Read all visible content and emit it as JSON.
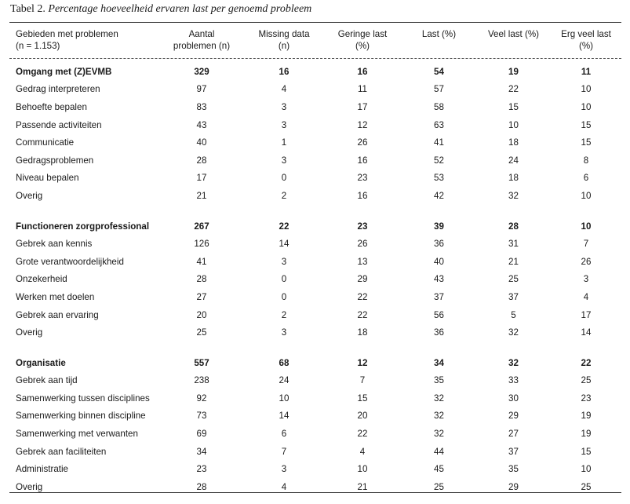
{
  "caption": {
    "label": "Tabel 2.",
    "title": "Percentage hoeveelheid ervaren last per genoemd probleem"
  },
  "headers": [
    {
      "line1": "Gebieden met problemen",
      "line2": "(n = 1.153)"
    },
    {
      "line1": "Aantal",
      "line2": "problemen (n)"
    },
    {
      "line1": "Missing data",
      "line2": "(n)"
    },
    {
      "line1": "Geringe last",
      "line2": "(%)"
    },
    {
      "line1": "Last (%)",
      "line2": ""
    },
    {
      "line1": "Veel last (%)",
      "line2": ""
    },
    {
      "line1": "Erg veel last",
      "line2": "(%)"
    }
  ],
  "groups": [
    {
      "name": "Omgang met (Z)EVMB",
      "values": [
        "329",
        "16",
        "16",
        "54",
        "19",
        "11"
      ],
      "rows": [
        {
          "label": "Gedrag interpreteren",
          "values": [
            "97",
            "4",
            "11",
            "57",
            "22",
            "10"
          ]
        },
        {
          "label": "Behoefte bepalen",
          "values": [
            "83",
            "3",
            "17",
            "58",
            "15",
            "10"
          ]
        },
        {
          "label": "Passende activiteiten",
          "values": [
            "43",
            "3",
            "12",
            "63",
            "10",
            "15"
          ]
        },
        {
          "label": "Communicatie",
          "values": [
            "40",
            "1",
            "26",
            "41",
            "18",
            "15"
          ]
        },
        {
          "label": "Gedragsproblemen",
          "values": [
            "28",
            "3",
            "16",
            "52",
            "24",
            "8"
          ]
        },
        {
          "label": "Niveau bepalen",
          "values": [
            "17",
            "0",
            "23",
            "53",
            "18",
            "6"
          ]
        },
        {
          "label": "Overig",
          "values": [
            "21",
            "2",
            "16",
            "42",
            "32",
            "10"
          ]
        }
      ]
    },
    {
      "name": "Functioneren zorgprofessional",
      "values": [
        "267",
        "22",
        "23",
        "39",
        "28",
        "10"
      ],
      "rows": [
        {
          "label": "Gebrek aan kennis",
          "values": [
            "126",
            "14",
            "26",
            "36",
            "31",
            "7"
          ]
        },
        {
          "label": "Grote verantwoordelijkheid",
          "values": [
            "41",
            "3",
            "13",
            "40",
            "21",
            "26"
          ]
        },
        {
          "label": "Onzekerheid",
          "values": [
            "28",
            "0",
            "29",
            "43",
            "25",
            "3"
          ]
        },
        {
          "label": "Werken met doelen",
          "values": [
            "27",
            "0",
            "22",
            "37",
            "37",
            "4"
          ]
        },
        {
          "label": "Gebrek aan ervaring",
          "values": [
            "20",
            "2",
            "22",
            "56",
            "5",
            "17"
          ]
        },
        {
          "label": "Overig",
          "values": [
            "25",
            "3",
            "18",
            "36",
            "32",
            "14"
          ]
        }
      ]
    },
    {
      "name": "Organisatie",
      "values": [
        "557",
        "68",
        "12",
        "34",
        "32",
        "22"
      ],
      "rows": [
        {
          "label": "Gebrek aan tijd",
          "values": [
            "238",
            "24",
            "7",
            "35",
            "33",
            "25"
          ]
        },
        {
          "label": "Samenwerking tussen disciplines",
          "values": [
            "92",
            "10",
            "15",
            "32",
            "30",
            "23"
          ]
        },
        {
          "label": "Samenwerking binnen discipline",
          "values": [
            "73",
            "14",
            "20",
            "32",
            "29",
            "19"
          ]
        },
        {
          "label": "Samenwerking met verwanten",
          "values": [
            "69",
            "6",
            "22",
            "32",
            "27",
            "19"
          ]
        },
        {
          "label": "Gebrek aan faciliteiten",
          "values": [
            "34",
            "7",
            "4",
            "44",
            "37",
            "15"
          ]
        },
        {
          "label": "Administratie",
          "values": [
            "23",
            "3",
            "10",
            "45",
            "35",
            "10"
          ]
        },
        {
          "label": "Overig",
          "values": [
            "28",
            "4",
            "21",
            "25",
            "29",
            "25"
          ]
        }
      ]
    }
  ]
}
